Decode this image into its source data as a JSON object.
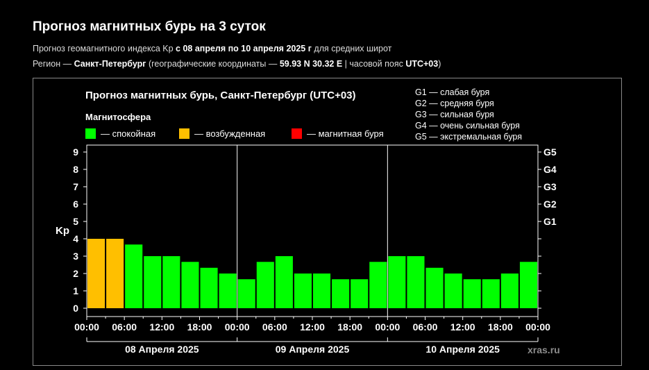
{
  "header": {
    "title": "Прогноз магнитных бурь на 3 суток",
    "line1_prefix": "Прогноз геомагнитного индекса Kp ",
    "line1_bold": "с 08 апреля по 10 апреля 2025 г",
    "line1_suffix": " для средних широт",
    "line2_prefix": "Регион — ",
    "line2_city": "Санкт-Петербург",
    "line2_mid": " (географические координаты — ",
    "line2_coords": "59.93 N 30.32 E",
    "line2_sep": " | часовой пояс ",
    "line2_tz": "UTC+03",
    "line2_end": ")"
  },
  "chart_data": {
    "type": "bar",
    "title": "Прогноз магнитных бурь, Санкт-Петербург (UTC+03)",
    "ylabel": "Kp",
    "ylim": [
      0,
      9
    ],
    "yticks": [
      "0",
      "1",
      "2",
      "3",
      "4",
      "5",
      "6",
      "7",
      "8",
      "9"
    ],
    "storm_scale_ticks": [
      "G1",
      "G2",
      "G3",
      "G4",
      "G5"
    ],
    "storm_scale_levels": [
      5,
      6,
      7,
      8,
      9
    ],
    "storm_legend": [
      "G1 — слабая буря",
      "G2 — средняя буря",
      "G3 — сильная буря",
      "G4 — очень сильная буря",
      "G5 — экстремальная буря"
    ],
    "magnetosphere_title": "Магнитосфера",
    "magnetosphere_legend": [
      {
        "label": "— спокойная",
        "color": "#00ff00"
      },
      {
        "label": "— возбужденная",
        "color": "#ffbf00"
      },
      {
        "label": "— магнитная буря",
        "color": "#ff0000"
      }
    ],
    "xticks": [
      "00:00",
      "06:00",
      "12:00",
      "18:00",
      "00:00",
      "06:00",
      "12:00",
      "18:00",
      "00:00",
      "06:00",
      "12:00",
      "18:00",
      "00:00"
    ],
    "days": [
      "08 Апреля 2025",
      "09 Апреля 2025",
      "10 Апреля 2025"
    ],
    "intervals_per_day": 8,
    "values": [
      4,
      4,
      3.67,
      3,
      3,
      2.67,
      2.33,
      2,
      1.67,
      2.67,
      3,
      2,
      2,
      1.67,
      1.67,
      2.67,
      3,
      3,
      2.33,
      2,
      1.67,
      1.67,
      2,
      2.67
    ],
    "status": [
      "excited",
      "excited",
      "calm",
      "calm",
      "calm",
      "calm",
      "calm",
      "calm",
      "calm",
      "calm",
      "calm",
      "calm",
      "calm",
      "calm",
      "calm",
      "calm",
      "calm",
      "calm",
      "calm",
      "calm",
      "calm",
      "calm",
      "calm",
      "calm"
    ],
    "colors": {
      "calm": "#00ff00",
      "excited": "#ffbf00",
      "storm": "#ff0000"
    },
    "watermark": "xras.ru"
  }
}
